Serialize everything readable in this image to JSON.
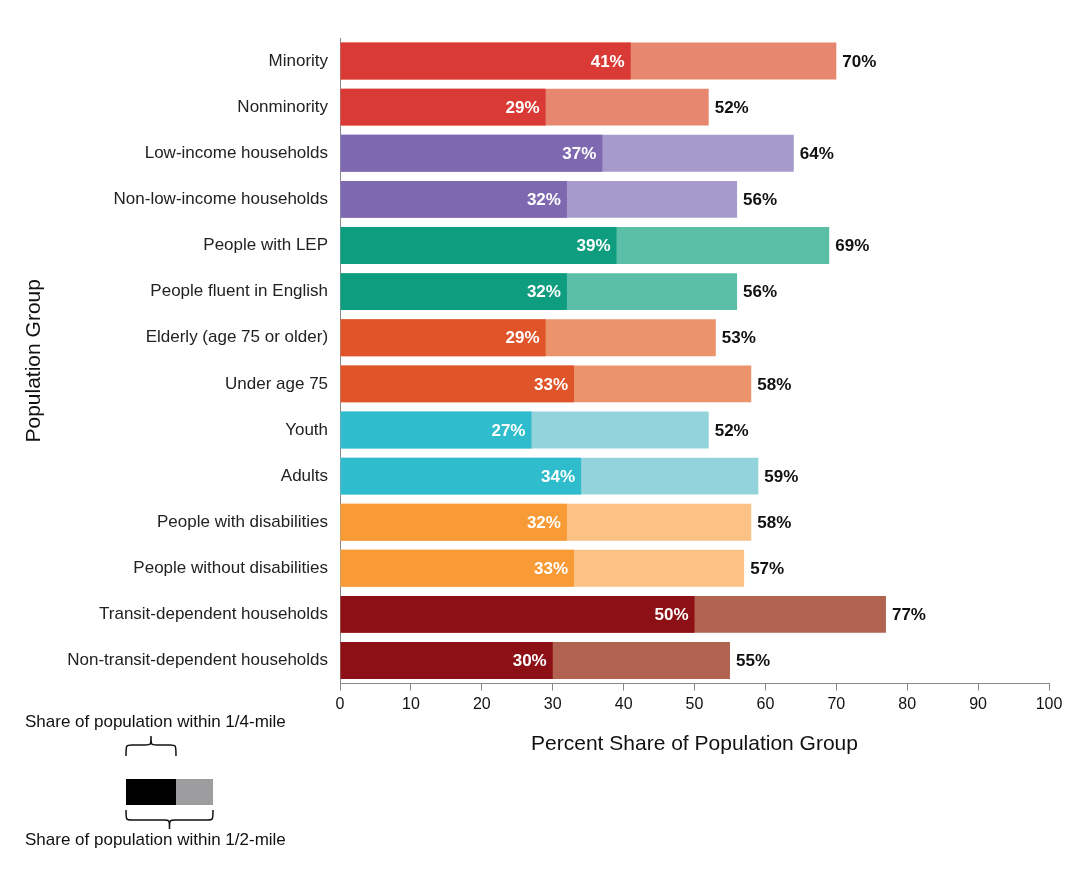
{
  "chart_data": {
    "type": "bar",
    "orientation": "horizontal",
    "stacked": false,
    "grid": false,
    "data_labels": true,
    "legend": "lower left",
    "x_label": "Percent Share of Population Group",
    "y_label": "Population Group",
    "xlim": [
      0,
      100
    ],
    "xticks": [
      0,
      10,
      20,
      30,
      40,
      50,
      60,
      70,
      80,
      90,
      100
    ],
    "categories": [
      "Minority",
      "Nonminority",
      "Low-income households",
      "Non-low-income households",
      "People with LEP",
      "People fluent in English",
      "Elderly (age 75 or older)",
      "Under age 75",
      "Youth",
      "Adults",
      "People with disabilities",
      "People without disabilities",
      "Transit-dependent households",
      "Non-transit-dependent households"
    ],
    "series": [
      {
        "name": "Share of population within 1/4-mile",
        "color": "#000000",
        "colors": [
          "#d93a35",
          "#d93a35",
          "#7e69b0",
          "#7e69b0",
          "#0e9e7f",
          "#0e9e7f",
          "#e0542a",
          "#e0542a",
          "#2fbccd",
          "#2fbccd",
          "#f89a35",
          "#f89a35",
          "#8c1015",
          "#8c1015"
        ],
        "values": [
          41,
          29,
          37,
          32,
          39,
          32,
          29,
          33,
          27,
          34,
          32,
          33,
          50,
          30
        ],
        "value_labels": [
          "41%",
          "29%",
          "37%",
          "32%",
          "39%",
          "32%",
          "29%",
          "33%",
          "27%",
          "34%",
          "32%",
          "33%",
          "50%",
          "30%"
        ]
      },
      {
        "name": "Share of population within 1/2-mile",
        "color": "#9d9d9f",
        "colors": [
          "#e8876f",
          "#e8876f",
          "#a699cc",
          "#a699cc",
          "#5bbfa8",
          "#5bbfa8",
          "#eb946c",
          "#eb946c",
          "#92d3dc",
          "#92d3dc",
          "#fbc185",
          "#fbc185",
          "#b26350",
          "#b26350"
        ],
        "values": [
          70,
          52,
          64,
          56,
          69,
          56,
          53,
          58,
          52,
          59,
          58,
          57,
          77,
          55
        ],
        "value_labels": [
          "70%",
          "52%",
          "64%",
          "56%",
          "69%",
          "56%",
          "53%",
          "58%",
          "52%",
          "59%",
          "58%",
          "57%",
          "77%",
          "55%"
        ]
      }
    ]
  }
}
